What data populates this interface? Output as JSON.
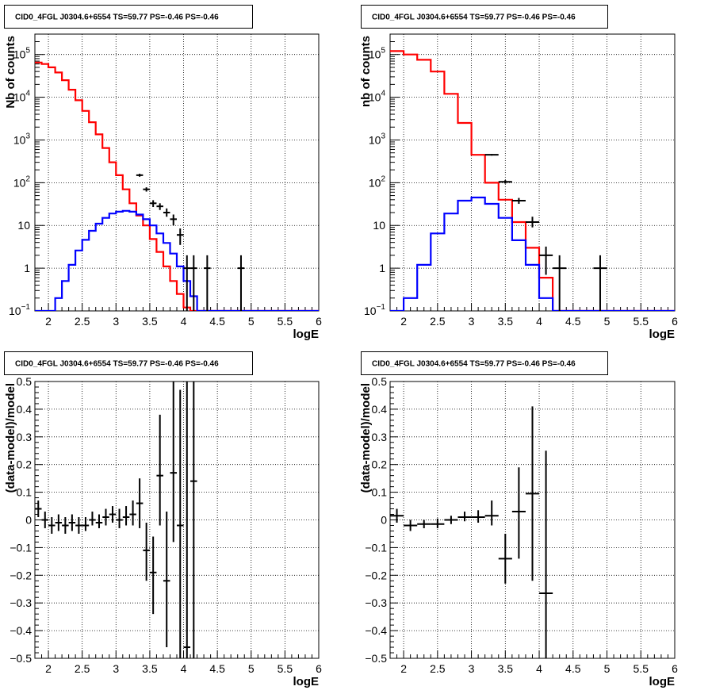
{
  "pad_title": "CID0_4FGL J0304.6+6554 TS=59.77 PS=-0.46 PS=-0.46",
  "colors": {
    "data": "#000000",
    "total_model": "#ff0000",
    "source_model": "#0000ff",
    "grid": "#000000"
  },
  "chart_data": [
    {
      "type": "line",
      "panel": "top-left",
      "title": "CID0_4FGL J0304.6+6554 TS=59.77 PS=-0.46 PS=-0.46",
      "xlabel": "logE",
      "ylabel": "Nb of counts",
      "xlim": [
        1.8,
        6.0
      ],
      "ylim": [
        0.1,
        300000
      ],
      "yscale": "log",
      "xticks": [
        2,
        2.5,
        3,
        3.5,
        4,
        4.5,
        5,
        5.5,
        6
      ],
      "yticks": [
        {
          "value": 0.1,
          "mant": "10",
          "exp": "−1"
        },
        {
          "value": 1,
          "mant": "1",
          "exp": ""
        },
        {
          "value": 10,
          "mant": "10",
          "exp": ""
        },
        {
          "value": 100,
          "mant": "10",
          "exp": "2"
        },
        {
          "value": 1000,
          "mant": "10",
          "exp": "3"
        },
        {
          "value": 10000,
          "mant": "10",
          "exp": "4"
        },
        {
          "value": 100000,
          "mant": "10",
          "exp": "5"
        }
      ],
      "grid": true,
      "bin_edges": [
        1.8,
        1.9,
        2.0,
        2.1,
        2.2,
        2.3,
        2.4,
        2.5,
        2.6,
        2.7,
        2.8,
        2.9,
        3.0,
        3.1,
        3.2,
        3.3,
        3.4,
        3.5,
        3.6,
        3.7,
        3.8,
        3.9,
        4.0,
        4.1,
        4.2,
        4.3,
        4.4,
        4.5,
        4.6,
        4.7,
        4.8,
        4.9,
        5.0,
        5.1,
        5.2,
        5.3,
        5.4,
        5.5,
        5.6,
        5.7,
        5.8,
        5.9,
        6.0
      ],
      "series": [
        {
          "role": "total_model",
          "values": [
            65000,
            60000,
            50000,
            38000,
            25000,
            15000,
            8500,
            4800,
            2600,
            1350,
            650,
            300,
            150,
            70,
            33,
            17,
            10,
            4.8,
            2.4,
            1.1,
            0.5,
            0.25,
            0.12,
            0.1,
            0.1,
            0.1,
            0.1,
            0.1,
            0.1,
            0.1,
            0.1,
            0.1,
            0.1,
            0.1,
            0.1,
            0.1,
            0.1,
            0.1,
            0.1,
            0.1,
            0.1,
            0.1
          ]
        },
        {
          "role": "source_model",
          "values": [
            0.1,
            0.1,
            0.1,
            0.2,
            0.5,
            1.2,
            2.6,
            4.6,
            7.5,
            11,
            15,
            19,
            21,
            22,
            21,
            18,
            14,
            10,
            6.5,
            3.9,
            2.2,
            1.1,
            0.5,
            0.22,
            0.1,
            0.1,
            0.1,
            0.1,
            0.1,
            0.1,
            0.1,
            0.1,
            0.1,
            0.1,
            0.1,
            0.1,
            0.1,
            0.1,
            0.1,
            0.1,
            0.1,
            0.1
          ]
        },
        {
          "role": "data",
          "points": [
            {
              "x": 3.35,
              "xerr": 0.05,
              "y": 150,
              "lo": 138,
              "hi": 162
            },
            {
              "x": 3.45,
              "xerr": 0.05,
              "y": 70,
              "lo": 62,
              "hi": 78
            },
            {
              "x": 3.55,
              "xerr": 0.05,
              "y": 33,
              "lo": 27,
              "hi": 39
            },
            {
              "x": 3.65,
              "xerr": 0.05,
              "y": 28,
              "lo": 23,
              "hi": 33
            },
            {
              "x": 3.75,
              "xerr": 0.05,
              "y": 20,
              "lo": 16,
              "hi": 25
            },
            {
              "x": 3.85,
              "xerr": 0.05,
              "y": 14,
              "lo": 10,
              "hi": 18
            },
            {
              "x": 3.95,
              "xerr": 0.05,
              "y": 6,
              "lo": 3.5,
              "hi": 8.5
            },
            {
              "x": 4.05,
              "xerr": 0.05,
              "y": 1,
              "lo": 0.1,
              "hi": 2
            },
            {
              "x": 4.15,
              "xerr": 0.05,
              "y": 1,
              "lo": 0.1,
              "hi": 2
            },
            {
              "x": 4.35,
              "xerr": 0.05,
              "y": 1,
              "lo": 0.1,
              "hi": 2
            },
            {
              "x": 4.85,
              "xerr": 0.05,
              "y": 1,
              "lo": 0.1,
              "hi": 2
            }
          ]
        }
      ]
    },
    {
      "type": "line",
      "panel": "top-right",
      "title": "CID0_4FGL J0304.6+6554 TS=59.77 PS=-0.46 PS=-0.46",
      "xlabel": "logE",
      "ylabel": "nb of counts",
      "xlim": [
        1.8,
        6.0
      ],
      "ylim": [
        0.1,
        300000
      ],
      "yscale": "log",
      "xticks": [
        2,
        2.5,
        3,
        3.5,
        4,
        4.5,
        5,
        5.5,
        6
      ],
      "yticks": [
        {
          "value": 0.1,
          "mant": "10",
          "exp": "−1"
        },
        {
          "value": 1,
          "mant": "1",
          "exp": ""
        },
        {
          "value": 10,
          "mant": "10",
          "exp": ""
        },
        {
          "value": 100,
          "mant": "10",
          "exp": "2"
        },
        {
          "value": 1000,
          "mant": "10",
          "exp": "3"
        },
        {
          "value": 10000,
          "mant": "10",
          "exp": "4"
        },
        {
          "value": 100000,
          "mant": "10",
          "exp": "5"
        }
      ],
      "grid": true,
      "bin_edges": [
        1.8,
        2.0,
        2.2,
        2.4,
        2.6,
        2.8,
        3.0,
        3.2,
        3.4,
        3.6,
        3.8,
        4.0,
        4.2,
        4.4,
        4.6,
        4.8,
        5.0,
        5.2,
        5.4,
        5.6,
        5.8,
        6.0
      ],
      "series": [
        {
          "role": "total_model",
          "values": [
            120000,
            100000,
            75000,
            40000,
            12000,
            2500,
            450,
            100,
            40,
            12,
            3,
            0.6,
            0.1,
            0.1,
            0.1,
            0.1,
            0.1,
            0.1,
            0.1,
            0.1,
            0.1
          ]
        },
        {
          "role": "source_model",
          "values": [
            0.1,
            0.2,
            1.2,
            6.5,
            19,
            38,
            45,
            32,
            15,
            4.5,
            1.2,
            0.2,
            0.1,
            0.1,
            0.1,
            0.1,
            0.1,
            0.1,
            0.1,
            0.1,
            0.1
          ]
        },
        {
          "role": "data",
          "points": [
            {
              "x": 3.3,
              "xerr": 0.1,
              "y": 450,
              "lo": 430,
              "hi": 470
            },
            {
              "x": 3.5,
              "xerr": 0.1,
              "y": 105,
              "lo": 95,
              "hi": 115
            },
            {
              "x": 3.7,
              "xerr": 0.1,
              "y": 38,
              "lo": 32,
              "hi": 44
            },
            {
              "x": 3.9,
              "xerr": 0.1,
              "y": 12,
              "lo": 9,
              "hi": 16
            },
            {
              "x": 4.1,
              "xerr": 0.1,
              "y": 2,
              "lo": 0.7,
              "hi": 3.2
            },
            {
              "x": 4.3,
              "xerr": 0.1,
              "y": 1,
              "lo": 0.1,
              "hi": 2
            },
            {
              "x": 4.9,
              "xerr": 0.1,
              "y": 1,
              "lo": 0.1,
              "hi": 2
            }
          ]
        }
      ]
    },
    {
      "type": "scatter",
      "panel": "bottom-left",
      "title": "CID0_4FGL J0304.6+6554 TS=59.77 PS=-0.46 PS=-0.46",
      "xlabel": "logE",
      "ylabel": "(data-model)/model",
      "xlim": [
        1.8,
        6.0
      ],
      "ylim": [
        -0.5,
        0.5
      ],
      "xticks": [
        2,
        2.5,
        3,
        3.5,
        4,
        4.5,
        5,
        5.5,
        6
      ],
      "yticks": [
        {
          "value": -0.5,
          "label": "−0.5"
        },
        {
          "value": -0.4,
          "label": "−0.4"
        },
        {
          "value": -0.3,
          "label": "−0.3"
        },
        {
          "value": -0.2,
          "label": "−0.2"
        },
        {
          "value": -0.1,
          "label": "−0.1"
        },
        {
          "value": 0,
          "label": "0"
        },
        {
          "value": 0.1,
          "label": "0.1"
        },
        {
          "value": 0.2,
          "label": "0.2"
        },
        {
          "value": 0.3,
          "label": "0.3"
        },
        {
          "value": 0.4,
          "label": "0.4"
        },
        {
          "value": 0.5,
          "label": "0.5"
        }
      ],
      "grid": true,
      "series": [
        {
          "role": "data",
          "points": [
            {
              "x": 1.85,
              "xerr": 0.05,
              "y": 0.04,
              "lo": 0.01,
              "hi": 0.07
            },
            {
              "x": 1.95,
              "xerr": 0.05,
              "y": 0.0,
              "lo": -0.03,
              "hi": 0.03
            },
            {
              "x": 2.05,
              "xerr": 0.05,
              "y": -0.02,
              "lo": -0.05,
              "hi": 0.01
            },
            {
              "x": 2.15,
              "xerr": 0.05,
              "y": -0.01,
              "lo": -0.04,
              "hi": 0.02
            },
            {
              "x": 2.25,
              "xerr": 0.05,
              "y": -0.02,
              "lo": -0.05,
              "hi": 0.01
            },
            {
              "x": 2.35,
              "xerr": 0.05,
              "y": -0.01,
              "lo": -0.04,
              "hi": 0.02
            },
            {
              "x": 2.45,
              "xerr": 0.05,
              "y": -0.02,
              "lo": -0.05,
              "hi": 0.01
            },
            {
              "x": 2.55,
              "xerr": 0.05,
              "y": -0.02,
              "lo": -0.04,
              "hi": 0.01
            },
            {
              "x": 2.65,
              "xerr": 0.05,
              "y": 0.0,
              "lo": -0.02,
              "hi": 0.03
            },
            {
              "x": 2.75,
              "xerr": 0.05,
              "y": -0.01,
              "lo": -0.03,
              "hi": 0.02
            },
            {
              "x": 2.85,
              "xerr": 0.05,
              "y": 0.01,
              "lo": -0.02,
              "hi": 0.04
            },
            {
              "x": 2.95,
              "xerr": 0.05,
              "y": 0.02,
              "lo": -0.01,
              "hi": 0.05
            },
            {
              "x": 3.05,
              "xerr": 0.05,
              "y": 0.0,
              "lo": -0.03,
              "hi": 0.04
            },
            {
              "x": 3.15,
              "xerr": 0.05,
              "y": 0.01,
              "lo": -0.02,
              "hi": 0.05
            },
            {
              "x": 3.25,
              "xerr": 0.05,
              "y": 0.02,
              "lo": -0.02,
              "hi": 0.07
            },
            {
              "x": 3.35,
              "xerr": 0.05,
              "y": 0.06,
              "lo": -0.03,
              "hi": 0.15
            },
            {
              "x": 3.45,
              "xerr": 0.05,
              "y": -0.11,
              "lo": -0.22,
              "hi": -0.01
            },
            {
              "x": 3.55,
              "xerr": 0.05,
              "y": -0.19,
              "lo": -0.34,
              "hi": -0.06
            },
            {
              "x": 3.65,
              "xerr": 0.05,
              "y": 0.16,
              "lo": -0.02,
              "hi": 0.38
            },
            {
              "x": 3.75,
              "xerr": 0.05,
              "y": -0.22,
              "lo": -0.46,
              "hi": 0.03
            },
            {
              "x": 3.85,
              "xerr": 0.05,
              "y": 0.17,
              "lo": -0.08,
              "hi": 0.5
            },
            {
              "x": 3.95,
              "xerr": 0.05,
              "y": -0.02,
              "lo": -0.5,
              "hi": 0.47
            },
            {
              "x": 4.05,
              "xerr": 0.05,
              "y": -0.46,
              "lo": -0.5,
              "hi": 0.5
            },
            {
              "x": 4.15,
              "xerr": 0.05,
              "y": 0.14,
              "lo": -0.5,
              "hi": 0.5
            }
          ]
        }
      ]
    },
    {
      "type": "scatter",
      "panel": "bottom-right",
      "title": "CID0_4FGL J0304.6+6554 TS=59.77 PS=-0.46 PS=-0.46",
      "xlabel": "logE",
      "ylabel": "(data-model)/model",
      "xlim": [
        1.8,
        6.0
      ],
      "ylim": [
        -0.5,
        0.5
      ],
      "xticks": [
        2,
        2.5,
        3,
        3.5,
        4,
        4.5,
        5,
        5.5,
        6
      ],
      "yticks": [
        {
          "value": -0.5,
          "label": "−0.5"
        },
        {
          "value": -0.4,
          "label": "−0.4"
        },
        {
          "value": -0.3,
          "label": "−0.3"
        },
        {
          "value": -0.2,
          "label": "−0.2"
        },
        {
          "value": -0.1,
          "label": "−0.1"
        },
        {
          "value": 0,
          "label": "0"
        },
        {
          "value": 0.1,
          "label": "0.1"
        },
        {
          "value": 0.2,
          "label": "0.2"
        },
        {
          "value": 0.3,
          "label": "0.3"
        },
        {
          "value": 0.4,
          "label": "0.4"
        },
        {
          "value": 0.5,
          "label": "0.5"
        }
      ],
      "grid": true,
      "series": [
        {
          "role": "data",
          "points": [
            {
              "x": 1.9,
              "xerr": 0.1,
              "y": 0.015,
              "lo": -0.01,
              "hi": 0.04
            },
            {
              "x": 2.1,
              "xerr": 0.1,
              "y": -0.02,
              "lo": -0.04,
              "hi": 0.0
            },
            {
              "x": 2.3,
              "xerr": 0.1,
              "y": -0.015,
              "lo": -0.03,
              "hi": 0.0
            },
            {
              "x": 2.5,
              "xerr": 0.1,
              "y": -0.015,
              "lo": -0.03,
              "hi": 0.005
            },
            {
              "x": 2.7,
              "xerr": 0.1,
              "y": 0.0,
              "lo": -0.015,
              "hi": 0.015
            },
            {
              "x": 2.9,
              "xerr": 0.1,
              "y": 0.01,
              "lo": -0.005,
              "hi": 0.03
            },
            {
              "x": 3.1,
              "xerr": 0.1,
              "y": 0.01,
              "lo": -0.01,
              "hi": 0.035
            },
            {
              "x": 3.3,
              "xerr": 0.1,
              "y": 0.015,
              "lo": -0.02,
              "hi": 0.07
            },
            {
              "x": 3.5,
              "xerr": 0.1,
              "y": -0.14,
              "lo": -0.23,
              "hi": -0.05
            },
            {
              "x": 3.7,
              "xerr": 0.1,
              "y": 0.03,
              "lo": -0.14,
              "hi": 0.19
            },
            {
              "x": 3.9,
              "xerr": 0.1,
              "y": 0.095,
              "lo": -0.22,
              "hi": 0.41
            },
            {
              "x": 4.1,
              "xerr": 0.1,
              "y": -0.265,
              "lo": -0.5,
              "hi": 0.25
            }
          ]
        }
      ]
    }
  ]
}
